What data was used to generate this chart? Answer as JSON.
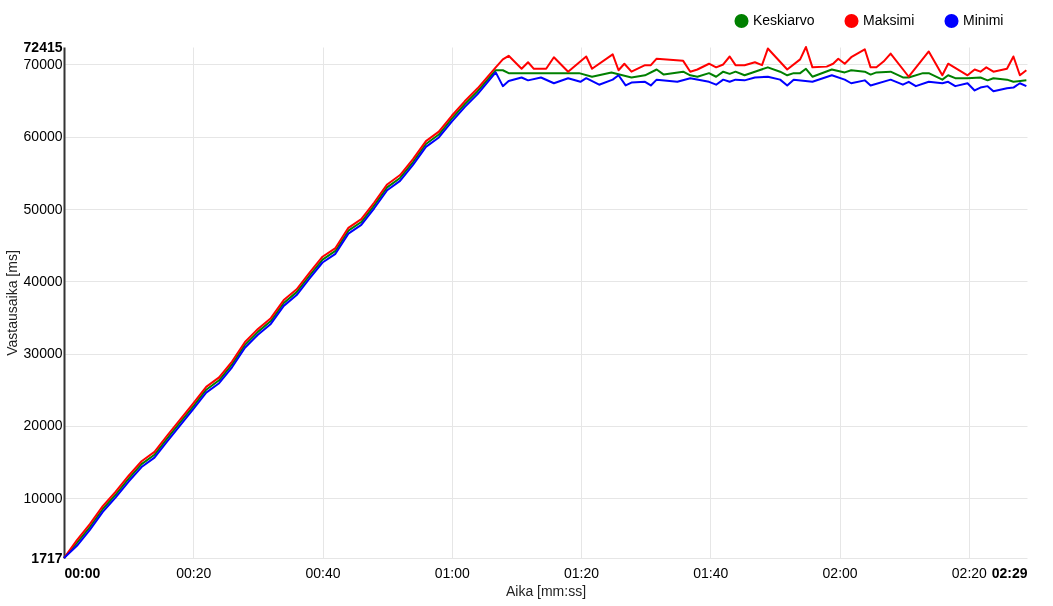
{
  "chart_data": {
    "type": "line",
    "xlabel": "Aika [mm:ss]",
    "ylabel": "Vastausaika [ms]",
    "xlim": [
      0,
      149
    ],
    "ylim": [
      1717,
      72415
    ],
    "xticks": [
      {
        "value": 0,
        "label": "00:00"
      },
      {
        "value": 20,
        "label": "00:20"
      },
      {
        "value": 40,
        "label": "00:40"
      },
      {
        "value": 60,
        "label": "01:00"
      },
      {
        "value": 80,
        "label": "01:20"
      },
      {
        "value": 100,
        "label": "01:40"
      },
      {
        "value": 120,
        "label": "02:00"
      },
      {
        "value": 140,
        "label": "02:20"
      },
      {
        "value": 149,
        "label": "02:29"
      }
    ],
    "yticks": [
      1717,
      10000,
      20000,
      30000,
      40000,
      50000,
      60000,
      70000,
      72415
    ],
    "grid": true,
    "legend": "top right",
    "marker": "none",
    "line_style": "solid",
    "series": [
      {
        "name": "Keskiarvo",
        "color": "#008000",
        "x": [
          0,
          2,
          4,
          6,
          8,
          10,
          12,
          14,
          16,
          18,
          20,
          22,
          24,
          26,
          28,
          30,
          32,
          34,
          36,
          38,
          40,
          42,
          44,
          46,
          48,
          50,
          52,
          54,
          56,
          58,
          60,
          62,
          64,
          66.8,
          67.9,
          68.8,
          71.8,
          79.7,
          81.7,
          84.7,
          87.8,
          89.9,
          91.7,
          92.8,
          95.8,
          96.9,
          98,
          99.8,
          100.9,
          102,
          103,
          103.9,
          105.3,
          106.9,
          108.9,
          110.8,
          111.9,
          112.9,
          113.9,
          114.8,
          115.8,
          118.8,
          120.8,
          121.8,
          123.9,
          124.8,
          125.7,
          127.9,
          129.8,
          130.7,
          132.9,
          133.8,
          135.9,
          136.8,
          137.9,
          139.8,
          141.8,
          142.9,
          143.8,
          145.9,
          146.9,
          148.9
        ],
        "values": [
          1717,
          3800,
          6000,
          8500,
          10500,
          12700,
          14700,
          16000,
          18300,
          20500,
          22700,
          25000,
          26300,
          28500,
          31200,
          33000,
          34500,
          37000,
          38500,
          40800,
          43000,
          44200,
          47000,
          48200,
          50500,
          53000,
          54300,
          56500,
          59000,
          60300,
          62500,
          64500,
          66300,
          69200,
          69200,
          68800,
          68800,
          68800,
          68300,
          68900,
          68200,
          68500,
          69300,
          68600,
          69000,
          68500,
          68300,
          68800,
          68300,
          69000,
          68700,
          69000,
          68500,
          69000,
          69600,
          69000,
          68500,
          68800,
          68800,
          69400,
          68300,
          69300,
          68900,
          69200,
          69000,
          68600,
          68900,
          69000,
          68200,
          68200,
          68800,
          68800,
          67900,
          68500,
          68100,
          68100,
          68200,
          67800,
          68100,
          67900,
          67600,
          67800
        ]
      },
      {
        "name": "Maksimi",
        "color": "#ff0000",
        "x": [
          0,
          2,
          4,
          6,
          8,
          10,
          12,
          14,
          16,
          18,
          20,
          22,
          24,
          26,
          28,
          30,
          32,
          34,
          36,
          38,
          40,
          42,
          44,
          46,
          48,
          50,
          52,
          54,
          56,
          58,
          60,
          62,
          64,
          66.8,
          67.9,
          68.8,
          70.8,
          71.8,
          72.7,
          74.6,
          75.8,
          78,
          80.8,
          81.7,
          84.9,
          85.8,
          86.7,
          87.8,
          89.9,
          90.8,
          91.7,
          95.8,
          96.9,
          98,
          99.8,
          100.9,
          102,
          103,
          103.9,
          105.3,
          106.9,
          108,
          108.9,
          111.9,
          113.9,
          114.8,
          115.8,
          118,
          119,
          119.8,
          120.8,
          121.8,
          123.9,
          124.8,
          125.7,
          126.8,
          127.9,
          130.7,
          133.8,
          135.9,
          136.8,
          139.8,
          140.9,
          141.8,
          142.7,
          143.8,
          145.9,
          146.9,
          147.9,
          148.9
        ],
        "values": [
          1717,
          4200,
          6400,
          8900,
          10900,
          13100,
          15100,
          16400,
          18700,
          20900,
          23100,
          25400,
          26700,
          28900,
          31600,
          33400,
          34900,
          37400,
          38900,
          41200,
          43400,
          44600,
          47400,
          48600,
          50900,
          53400,
          54700,
          56900,
          59400,
          60700,
          62900,
          64900,
          66700,
          69600,
          70700,
          71200,
          69400,
          70300,
          69400,
          69400,
          71000,
          69000,
          71100,
          69400,
          71400,
          69200,
          70100,
          69000,
          69900,
          69900,
          70800,
          70500,
          69000,
          69300,
          70100,
          69600,
          70000,
          71100,
          69900,
          69900,
          70300,
          69900,
          72200,
          69300,
          70700,
          72415,
          69600,
          69700,
          70100,
          70800,
          70100,
          71000,
          72100,
          69600,
          69600,
          70400,
          71500,
          68300,
          71800,
          68500,
          70100,
          68500,
          69300,
          69000,
          69600,
          69000,
          69400,
          71100,
          68500,
          69200
        ]
      },
      {
        "name": "Minimi",
        "color": "#0000ff",
        "x": [
          0,
          2,
          4,
          6,
          8,
          10,
          12,
          14,
          16,
          18,
          20,
          22,
          24,
          26,
          28,
          30,
          32,
          34,
          36,
          38,
          40,
          42,
          44,
          46,
          48,
          50,
          52,
          54,
          56,
          58,
          60,
          62,
          64,
          66.8,
          67.9,
          68.8,
          70.8,
          71.8,
          73.8,
          75.8,
          78,
          79.9,
          80.8,
          82.8,
          84.9,
          85.8,
          86.9,
          87.8,
          89.9,
          90.8,
          91.7,
          94.9,
          96.9,
          99.8,
          100.9,
          102,
          103,
          103.9,
          105.3,
          106.9,
          108.9,
          110.8,
          111.9,
          112.9,
          115.8,
          118.8,
          120.8,
          121.8,
          123.9,
          124.8,
          127.9,
          129.8,
          130.7,
          131.8,
          133.8,
          135.9,
          136.8,
          137.9,
          139.8,
          140.9,
          141.8,
          142.9,
          143.8,
          145.9,
          146.9,
          147.9,
          148.9
        ],
        "values": [
          1717,
          3400,
          5600,
          8100,
          10100,
          12300,
          14300,
          15600,
          17900,
          20100,
          22300,
          24600,
          25900,
          28100,
          30800,
          32600,
          34100,
          36600,
          38100,
          40400,
          42600,
          43800,
          46600,
          47800,
          50100,
          52600,
          53900,
          56100,
          58600,
          59900,
          62100,
          64100,
          65900,
          68900,
          67000,
          67700,
          68200,
          67800,
          68200,
          67400,
          68100,
          67600,
          68100,
          67200,
          67900,
          68500,
          67100,
          67500,
          67600,
          67100,
          67900,
          67600,
          68100,
          67600,
          67200,
          67900,
          67600,
          67900,
          67800,
          68200,
          68300,
          67900,
          67100,
          67900,
          67600,
          68500,
          67900,
          67400,
          67800,
          67100,
          67900,
          67200,
          67600,
          67000,
          67600,
          67400,
          67600,
          67000,
          67400,
          66400,
          66800,
          67000,
          66300,
          66700,
          66800,
          67400,
          67000
        ]
      }
    ]
  }
}
